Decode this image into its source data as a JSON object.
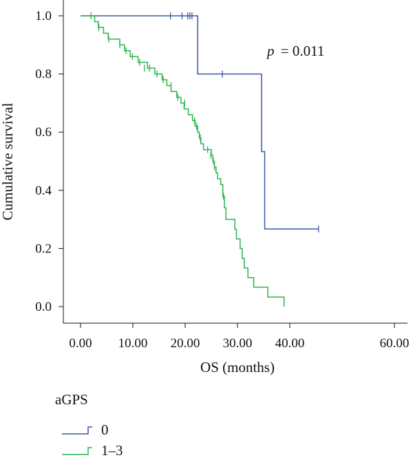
{
  "chart_data": {
    "type": "line",
    "xlabel": "OS (months)",
    "ylabel": "Cumulative survival",
    "xlim": [
      0,
      60
    ],
    "ylim": [
      0,
      1.0
    ],
    "x_ticks": [
      "0.00",
      "10.00",
      "20.00",
      "30.00",
      "40.00",
      "60.00"
    ],
    "x_tick_values": [
      0,
      10,
      20,
      30,
      40,
      60
    ],
    "y_ticks": [
      "0.0",
      "0.2",
      "0.4",
      "0.6",
      "0.8",
      "1.0"
    ],
    "y_tick_values": [
      0,
      0.2,
      0.4,
      0.6,
      0.8,
      1.0
    ],
    "grid": false,
    "annotation": {
      "p_label": "p",
      "p_value": "= 0.011",
      "x": 33.5,
      "y": 0.885
    },
    "legend": {
      "title": "aGPS",
      "position": "bottom-left"
    },
    "series": [
      {
        "name": "0",
        "color": "#3a55a6",
        "steps": [
          [
            0,
            1.0
          ],
          [
            22.4,
            0.8
          ],
          [
            34.6,
            0.533
          ],
          [
            35.2,
            0.267
          ],
          [
            45.5,
            0.267
          ]
        ],
        "censored": [
          [
            17.2,
            1.0
          ],
          [
            19.4,
            1.0
          ],
          [
            20.5,
            1.0
          ],
          [
            20.9,
            1.0
          ],
          [
            21.3,
            1.0
          ],
          [
            27.1,
            0.8
          ],
          [
            45.5,
            0.267
          ]
        ]
      },
      {
        "name": "1–3",
        "color": "#2bb24c",
        "steps": [
          [
            0,
            1.0
          ],
          [
            2.7,
            0.98
          ],
          [
            3.4,
            0.96
          ],
          [
            4.4,
            0.94
          ],
          [
            5.3,
            0.92
          ],
          [
            7.5,
            0.9
          ],
          [
            8.4,
            0.88
          ],
          [
            9.5,
            0.86
          ],
          [
            11.0,
            0.84
          ],
          [
            12.8,
            0.82
          ],
          [
            14.2,
            0.8
          ],
          [
            15.6,
            0.78
          ],
          [
            16.5,
            0.76
          ],
          [
            17.3,
            0.74
          ],
          [
            18.4,
            0.72
          ],
          [
            19.2,
            0.7
          ],
          [
            19.8,
            0.68
          ],
          [
            20.6,
            0.66
          ],
          [
            21.4,
            0.64
          ],
          [
            21.9,
            0.62
          ],
          [
            22.4,
            0.6
          ],
          [
            22.7,
            0.58
          ],
          [
            23.0,
            0.56
          ],
          [
            23.5,
            0.54
          ],
          [
            25.0,
            0.52
          ],
          [
            25.3,
            0.5
          ],
          [
            25.6,
            0.48
          ],
          [
            25.9,
            0.46
          ],
          [
            26.2,
            0.44
          ],
          [
            26.8,
            0.42
          ],
          [
            27.2,
            0.38
          ],
          [
            27.5,
            0.34
          ],
          [
            27.8,
            0.3
          ],
          [
            29.5,
            0.266
          ],
          [
            29.8,
            0.233
          ],
          [
            30.5,
            0.2
          ],
          [
            30.9,
            0.166
          ],
          [
            31.3,
            0.133
          ],
          [
            32.0,
            0.1
          ],
          [
            33.1,
            0.067
          ],
          [
            35.8,
            0.033
          ],
          [
            38.9,
            0.0
          ]
        ],
        "censored": [
          [
            2.0,
            1.0
          ],
          [
            3.5,
            0.96
          ],
          [
            5.4,
            0.92
          ],
          [
            7.5,
            0.9
          ],
          [
            8.7,
            0.88
          ],
          [
            9.9,
            0.86
          ],
          [
            11.3,
            0.84
          ],
          [
            12.2,
            0.82
          ],
          [
            13.2,
            0.82
          ],
          [
            14.6,
            0.8
          ],
          [
            15.8,
            0.78
          ],
          [
            17.3,
            0.76
          ],
          [
            18.6,
            0.72
          ],
          [
            19.9,
            0.7
          ],
          [
            21.8,
            0.64
          ],
          [
            22.2,
            0.62
          ],
          [
            22.9,
            0.58
          ],
          [
            24.3,
            0.54
          ],
          [
            24.9,
            0.52
          ],
          [
            25.4,
            0.5
          ],
          [
            25.6,
            0.48
          ],
          [
            27.3,
            0.38
          ]
        ]
      }
    ]
  }
}
